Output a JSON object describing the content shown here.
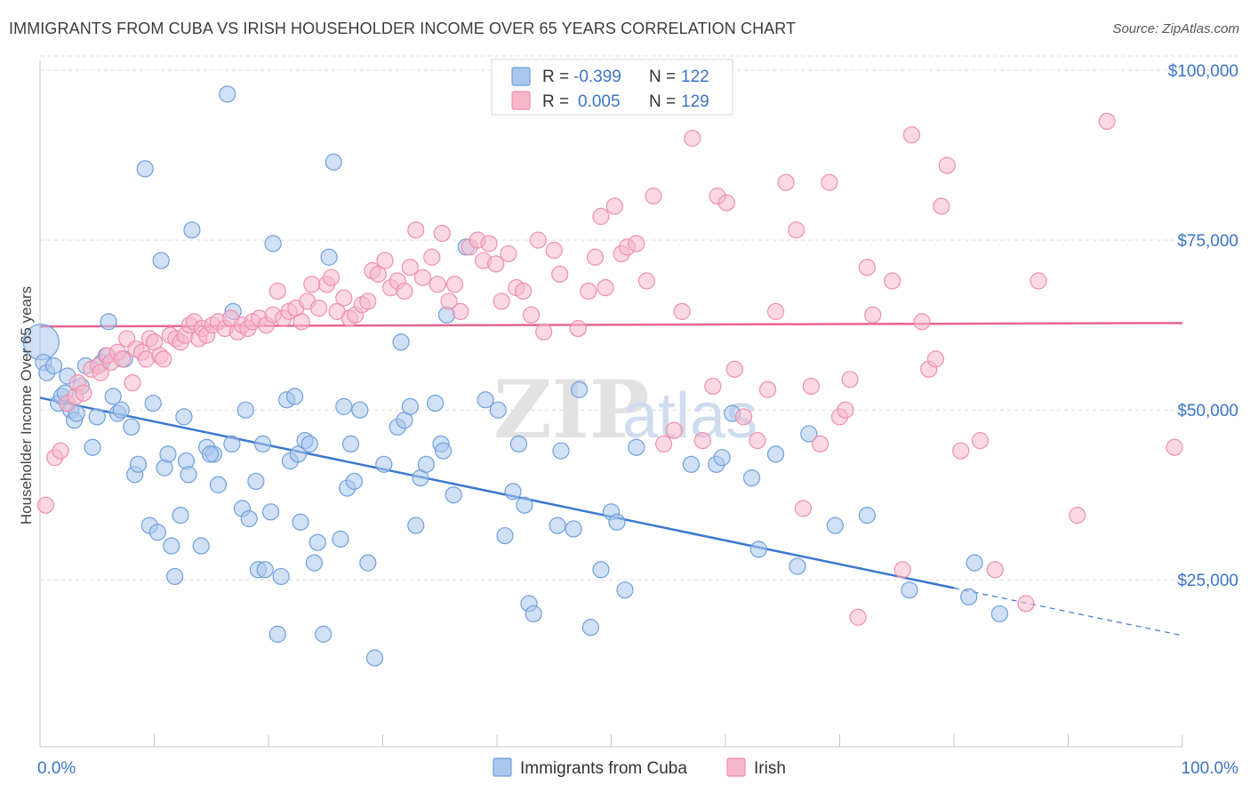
{
  "header": {
    "title": "IMMIGRANTS FROM CUBA VS IRISH HOUSEHOLDER INCOME OVER 65 YEARS CORRELATION CHART",
    "source": "Source: ZipAtlas.com"
  },
  "watermark": {
    "part1": "ZIP",
    "part2": "atlas"
  },
  "legend": {
    "rows": [
      {
        "r_label": "R =",
        "r_value": "-0.399",
        "n_label": "N =",
        "n_value": "122",
        "color": "#a9c6ec",
        "stroke": "#6f9fdc"
      },
      {
        "r_label": "R =",
        "r_value": "0.005",
        "n_label": "N =",
        "n_value": "129",
        "color": "#f7b8cc",
        "stroke": "#ee8fae"
      }
    ]
  },
  "bottom_legend": [
    {
      "label": "Immigrants from Cuba",
      "color": "#a9c6ec",
      "stroke": "#6f9fdc"
    },
    {
      "label": "Irish",
      "color": "#f7b8cc",
      "stroke": "#ee8fae"
    }
  ],
  "chart_data": {
    "type": "scatter",
    "ylabel": "Householder Income Over 65 years",
    "x_ticks": [
      "0.0%",
      "100.0%"
    ],
    "y_ticks": [
      {
        "value": 25000,
        "label": "$25,000"
      },
      {
        "value": 50000,
        "label": "$50,000"
      },
      {
        "value": 75000,
        "label": "$75,000"
      },
      {
        "value": 100000,
        "label": "$100,000"
      }
    ],
    "xlim": [
      0,
      100
    ],
    "ylim": [
      2000,
      102500
    ],
    "grid": true,
    "series": [
      {
        "name": "Immigrants from Cuba",
        "color": "#6f9fdc",
        "fill": "#a9c6ec",
        "trend": {
          "x0": 0,
          "y0": 51800,
          "x1": 80,
          "y1": 23800,
          "dash_to_x": 100,
          "dash_y": 16800
        },
        "points": [
          [
            0.1,
            60000
          ],
          [
            0.3,
            57000
          ],
          [
            0.6,
            55500
          ],
          [
            1.2,
            56500
          ],
          [
            1.6,
            51000
          ],
          [
            1.9,
            52000
          ],
          [
            2.2,
            52500
          ],
          [
            2.4,
            55000
          ],
          [
            2.7,
            50000
          ],
          [
            3.0,
            48500
          ],
          [
            3.2,
            49500
          ],
          [
            3.6,
            53500
          ],
          [
            4.0,
            56500
          ],
          [
            4.6,
            44500
          ],
          [
            5.0,
            49000
          ],
          [
            5.4,
            57000
          ],
          [
            5.8,
            58000
          ],
          [
            6.0,
            63000
          ],
          [
            6.4,
            52000
          ],
          [
            6.8,
            49500
          ],
          [
            7.1,
            50000
          ],
          [
            7.4,
            57500
          ],
          [
            8.0,
            47500
          ],
          [
            8.3,
            40500
          ],
          [
            8.6,
            42000
          ],
          [
            9.2,
            85500
          ],
          [
            9.6,
            33000
          ],
          [
            9.9,
            51000
          ],
          [
            10.3,
            32000
          ],
          [
            10.6,
            72000
          ],
          [
            10.9,
            41500
          ],
          [
            11.2,
            43500
          ],
          [
            11.5,
            30000
          ],
          [
            11.8,
            25500
          ],
          [
            12.3,
            34500
          ],
          [
            12.8,
            42500
          ],
          [
            13.0,
            40500
          ],
          [
            12.6,
            49000
          ],
          [
            13.3,
            76500
          ],
          [
            14.1,
            30000
          ],
          [
            14.6,
            44500
          ],
          [
            15.2,
            43500
          ],
          [
            15.6,
            39000
          ],
          [
            14.9,
            43500
          ],
          [
            16.4,
            96500
          ],
          [
            16.9,
            64500
          ],
          [
            16.8,
            45000
          ],
          [
            17.7,
            35500
          ],
          [
            18.0,
            50000
          ],
          [
            18.3,
            34000
          ],
          [
            18.9,
            39500
          ],
          [
            19.1,
            26500
          ],
          [
            19.7,
            26500
          ],
          [
            19.5,
            45000
          ],
          [
            20.2,
            35000
          ],
          [
            20.4,
            74500
          ],
          [
            20.8,
            17000
          ],
          [
            21.1,
            25500
          ],
          [
            21.6,
            51500
          ],
          [
            21.9,
            42500
          ],
          [
            22.3,
            52000
          ],
          [
            22.6,
            43500
          ],
          [
            22.8,
            33500
          ],
          [
            23.2,
            45500
          ],
          [
            23.6,
            45000
          ],
          [
            24.0,
            27500
          ],
          [
            24.3,
            30500
          ],
          [
            24.8,
            17000
          ],
          [
            25.3,
            72500
          ],
          [
            25.7,
            86500
          ],
          [
            26.3,
            31000
          ],
          [
            26.6,
            50500
          ],
          [
            26.9,
            38500
          ],
          [
            27.2,
            45000
          ],
          [
            27.5,
            39500
          ],
          [
            28.0,
            50000
          ],
          [
            28.7,
            27500
          ],
          [
            29.3,
            13500
          ],
          [
            30.1,
            42000
          ],
          [
            31.3,
            47500
          ],
          [
            31.6,
            60000
          ],
          [
            31.9,
            48500
          ],
          [
            32.4,
            50500
          ],
          [
            32.9,
            33000
          ],
          [
            33.3,
            40000
          ],
          [
            33.8,
            42000
          ],
          [
            34.6,
            51000
          ],
          [
            35.1,
            45000
          ],
          [
            35.3,
            44000
          ],
          [
            35.6,
            64000
          ],
          [
            36.2,
            37500
          ],
          [
            37.3,
            74000
          ],
          [
            39.0,
            51500
          ],
          [
            40.1,
            50000
          ],
          [
            40.7,
            31500
          ],
          [
            41.4,
            38000
          ],
          [
            41.9,
            45000
          ],
          [
            42.4,
            36000
          ],
          [
            42.8,
            21500
          ],
          [
            43.2,
            20000
          ],
          [
            45.3,
            33000
          ],
          [
            45.6,
            44000
          ],
          [
            46.7,
            32500
          ],
          [
            47.2,
            53000
          ],
          [
            48.2,
            18000
          ],
          [
            49.1,
            26500
          ],
          [
            50.0,
            35000
          ],
          [
            50.5,
            33500
          ],
          [
            51.2,
            23500
          ],
          [
            52.2,
            44500
          ],
          [
            57.0,
            42000
          ],
          [
            59.2,
            42000
          ],
          [
            59.7,
            43000
          ],
          [
            60.6,
            49500
          ],
          [
            62.3,
            40000
          ],
          [
            62.9,
            29500
          ],
          [
            64.4,
            43500
          ],
          [
            66.3,
            27000
          ],
          [
            67.3,
            46500
          ],
          [
            69.6,
            33000
          ],
          [
            72.4,
            34500
          ],
          [
            76.1,
            23500
          ],
          [
            81.3,
            22500
          ],
          [
            81.8,
            27500
          ],
          [
            84.0,
            20000
          ]
        ]
      },
      {
        "name": "Irish",
        "color": "#ee8fae",
        "fill": "#f7b8cc",
        "trend": {
          "x0": 0,
          "y0": 62300,
          "x1": 100,
          "y1": 62800
        },
        "points": [
          [
            0.5,
            36000
          ],
          [
            1.3,
            43000
          ],
          [
            1.8,
            44000
          ],
          [
            2.4,
            51000
          ],
          [
            3.1,
            52000
          ],
          [
            3.3,
            54000
          ],
          [
            3.8,
            52500
          ],
          [
            4.5,
            56000
          ],
          [
            5.1,
            56500
          ],
          [
            5.3,
            55500
          ],
          [
            5.9,
            58000
          ],
          [
            6.2,
            57000
          ],
          [
            6.8,
            58500
          ],
          [
            7.2,
            57500
          ],
          [
            7.6,
            60500
          ],
          [
            8.1,
            54000
          ],
          [
            8.4,
            59000
          ],
          [
            8.9,
            58500
          ],
          [
            9.3,
            57500
          ],
          [
            9.6,
            60500
          ],
          [
            10.0,
            60000
          ],
          [
            10.5,
            58000
          ],
          [
            10.8,
            57500
          ],
          [
            11.4,
            61000
          ],
          [
            11.9,
            60500
          ],
          [
            12.3,
            60000
          ],
          [
            12.7,
            61000
          ],
          [
            13.1,
            62500
          ],
          [
            13.5,
            63000
          ],
          [
            13.9,
            60500
          ],
          [
            14.2,
            62000
          ],
          [
            14.6,
            61000
          ],
          [
            15.1,
            62500
          ],
          [
            15.6,
            63000
          ],
          [
            16.2,
            62000
          ],
          [
            16.7,
            63500
          ],
          [
            17.3,
            61500
          ],
          [
            17.7,
            62500
          ],
          [
            18.2,
            62000
          ],
          [
            18.6,
            63000
          ],
          [
            19.2,
            63500
          ],
          [
            19.8,
            62500
          ],
          [
            20.4,
            64000
          ],
          [
            20.8,
            67500
          ],
          [
            21.3,
            63500
          ],
          [
            21.8,
            64500
          ],
          [
            22.4,
            65000
          ],
          [
            22.9,
            63000
          ],
          [
            23.4,
            66000
          ],
          [
            23.8,
            68500
          ],
          [
            24.4,
            65000
          ],
          [
            25.1,
            68500
          ],
          [
            25.5,
            69500
          ],
          [
            26.0,
            64500
          ],
          [
            26.6,
            66500
          ],
          [
            27.1,
            63500
          ],
          [
            27.6,
            64000
          ],
          [
            28.2,
            65500
          ],
          [
            28.7,
            66000
          ],
          [
            29.1,
            70500
          ],
          [
            29.6,
            70000
          ],
          [
            30.2,
            72000
          ],
          [
            30.7,
            68000
          ],
          [
            31.3,
            69000
          ],
          [
            31.9,
            67500
          ],
          [
            32.4,
            71000
          ],
          [
            32.9,
            76500
          ],
          [
            33.5,
            69500
          ],
          [
            34.3,
            72500
          ],
          [
            34.8,
            68500
          ],
          [
            35.2,
            76000
          ],
          [
            35.8,
            66000
          ],
          [
            36.3,
            68500
          ],
          [
            36.8,
            64500
          ],
          [
            37.6,
            74000
          ],
          [
            38.3,
            75000
          ],
          [
            38.8,
            72000
          ],
          [
            39.3,
            74500
          ],
          [
            39.9,
            71500
          ],
          [
            40.4,
            66000
          ],
          [
            41.0,
            73000
          ],
          [
            41.7,
            68000
          ],
          [
            42.3,
            67500
          ],
          [
            43.0,
            64000
          ],
          [
            43.6,
            75000
          ],
          [
            44.1,
            61500
          ],
          [
            45.0,
            73500
          ],
          [
            45.5,
            70000
          ],
          [
            46.7,
            98500
          ],
          [
            47.1,
            62000
          ],
          [
            48.0,
            67500
          ],
          [
            48.6,
            72500
          ],
          [
            49.1,
            78500
          ],
          [
            49.5,
            68000
          ],
          [
            50.3,
            80000
          ],
          [
            50.9,
            73000
          ],
          [
            51.4,
            74000
          ],
          [
            52.2,
            74500
          ],
          [
            53.1,
            69000
          ],
          [
            53.7,
            81500
          ],
          [
            54.6,
            45000
          ],
          [
            55.5,
            47000
          ],
          [
            56.2,
            64500
          ],
          [
            57.1,
            90000
          ],
          [
            58.0,
            45500
          ],
          [
            58.9,
            53500
          ],
          [
            59.3,
            81500
          ],
          [
            60.1,
            80500
          ],
          [
            60.8,
            56000
          ],
          [
            61.6,
            49000
          ],
          [
            62.8,
            45500
          ],
          [
            63.7,
            53000
          ],
          [
            64.4,
            64500
          ],
          [
            65.3,
            83500
          ],
          [
            66.2,
            76500
          ],
          [
            66.8,
            35500
          ],
          [
            67.5,
            53500
          ],
          [
            68.3,
            45000
          ],
          [
            69.1,
            83500
          ],
          [
            70.0,
            49000
          ],
          [
            70.5,
            50000
          ],
          [
            70.9,
            54500
          ],
          [
            71.6,
            19500
          ],
          [
            72.4,
            71000
          ],
          [
            72.9,
            64000
          ],
          [
            74.6,
            69000
          ],
          [
            75.5,
            26500
          ],
          [
            76.3,
            90500
          ],
          [
            77.2,
            63000
          ],
          [
            77.8,
            56000
          ],
          [
            78.4,
            57500
          ],
          [
            78.9,
            80000
          ],
          [
            79.4,
            86000
          ],
          [
            80.6,
            44000
          ],
          [
            82.3,
            45500
          ],
          [
            83.6,
            26500
          ],
          [
            86.3,
            21500
          ],
          [
            87.4,
            69000
          ],
          [
            90.8,
            34500
          ],
          [
            93.4,
            92500
          ],
          [
            99.3,
            44500
          ]
        ]
      }
    ]
  }
}
